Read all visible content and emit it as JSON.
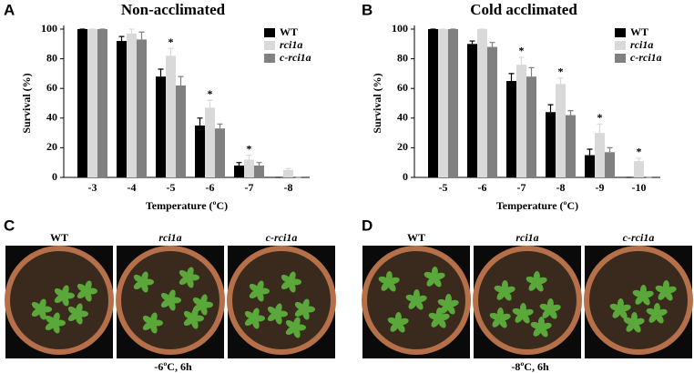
{
  "chart_data": [
    {
      "type": "bar",
      "title": "Non-acclimated",
      "x_label": "Temperature (ºC)",
      "y_label": "Survival (%)",
      "categories": [
        "-3",
        "-4",
        "-5",
        "-6",
        "-7",
        "-8"
      ],
      "series": [
        {
          "name": "WT",
          "color": "#000000",
          "values": [
            100,
            92,
            68,
            35,
            8,
            0
          ],
          "errors": [
            0,
            3,
            5,
            5,
            2,
            0
          ]
        },
        {
          "name": "rci1a",
          "color": "#d9d9d9",
          "values": [
            100,
            97,
            82,
            47,
            12,
            5
          ],
          "errors": [
            0,
            3,
            5,
            5,
            3,
            1
          ]
        },
        {
          "name": "c-rci1a",
          "color": "#808080",
          "values": [
            100,
            93,
            62,
            33,
            8,
            0
          ],
          "errors": [
            0,
            5,
            6,
            3,
            2,
            0
          ]
        }
      ],
      "annotations": [
        {
          "text": "*",
          "x": "-5"
        },
        {
          "text": "*",
          "x": "-6"
        },
        {
          "text": "*",
          "x": "-7"
        }
      ],
      "ylim": [
        0,
        100
      ],
      "yticks": [
        0,
        20,
        40,
        60,
        80,
        100
      ],
      "legend": "upper right"
    },
    {
      "type": "bar",
      "title": "Cold acclimated",
      "x_label": "Temperature (ºC)",
      "y_label": "Survival (%)",
      "categories": [
        "-5",
        "-6",
        "-7",
        "-8",
        "-9",
        "-10"
      ],
      "series": [
        {
          "name": "WT",
          "color": "#000000",
          "values": [
            100,
            90,
            65,
            44,
            15,
            0
          ],
          "errors": [
            0,
            2,
            5,
            5,
            4,
            0
          ]
        },
        {
          "name": "rci1a",
          "color": "#d9d9d9",
          "values": [
            100,
            100,
            76,
            63,
            30,
            11
          ],
          "errors": [
            0,
            0,
            5,
            4,
            6,
            2
          ]
        },
        {
          "name": "c-rci1a",
          "color": "#808080",
          "values": [
            100,
            88,
            68,
            42,
            17,
            0
          ],
          "errors": [
            0,
            3,
            6,
            3,
            3,
            0
          ]
        }
      ],
      "annotations": [
        {
          "text": "*",
          "x": "-7"
        },
        {
          "text": "*",
          "x": "-8"
        },
        {
          "text": "*",
          "x": "-9"
        },
        {
          "text": "*",
          "x": "-10"
        }
      ],
      "ylim": [
        0,
        100
      ],
      "yticks": [
        0,
        20,
        40,
        60,
        80,
        100
      ],
      "legend": "upper right"
    }
  ],
  "panel_labels": [
    "A",
    "B",
    "C",
    "D"
  ],
  "photos": [
    {
      "labels": [
        "WT",
        "rci1a",
        "c-rci1a"
      ],
      "caption": "-6ºC, 6h"
    },
    {
      "labels": [
        "WT",
        "rci1a",
        "c-rci1a"
      ],
      "caption": "-8ºC, 6h"
    }
  ]
}
